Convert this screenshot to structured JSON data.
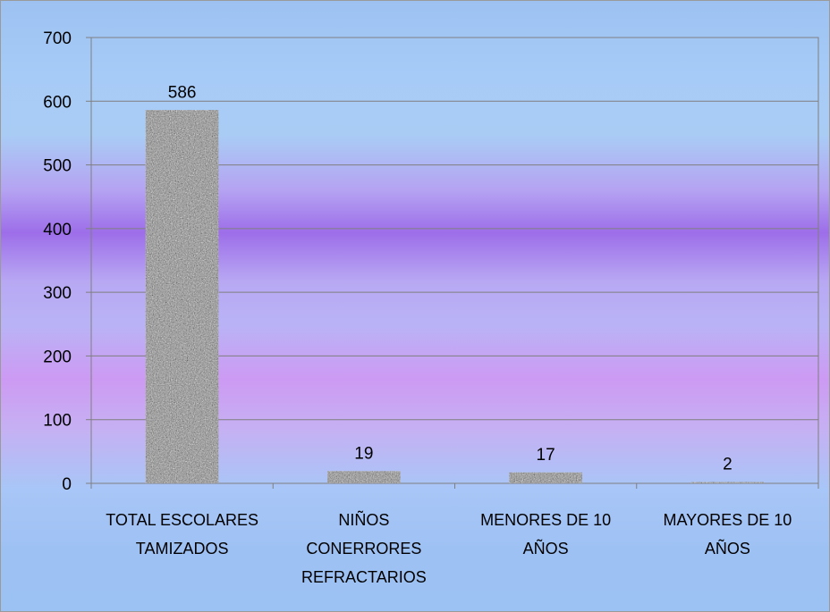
{
  "chart_data": {
    "type": "bar",
    "title": "",
    "xlabel": "",
    "ylabel": "",
    "ylim": [
      0,
      700
    ],
    "yticks": [
      0,
      100,
      200,
      300,
      400,
      500,
      600,
      700
    ],
    "categories": [
      [
        "TOTAL ESCOLARES",
        "TAMIZADOS"
      ],
      [
        "NIÑOS",
        "CONERRORES",
        "REFRACTARIOS"
      ],
      [
        "MENORES DE 10",
        "AÑOS"
      ],
      [
        "MAYORES DE 10",
        "AÑOS"
      ]
    ],
    "values": [
      586,
      19,
      17,
      2
    ],
    "data_labels": [
      "586",
      "19",
      "17",
      "2"
    ],
    "grid": true,
    "legend": "none",
    "bar_fill": "gray speckled texture"
  }
}
